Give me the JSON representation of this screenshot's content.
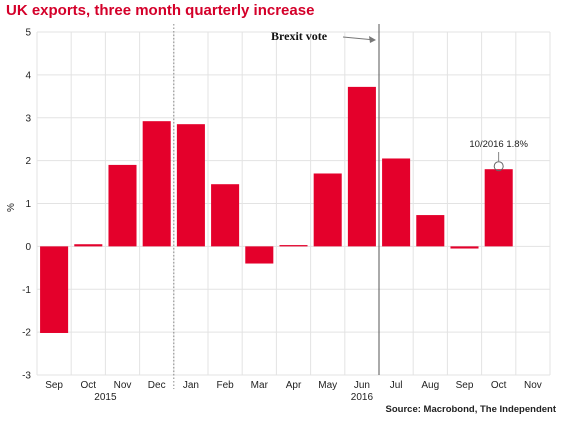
{
  "title": "UK exports, three month quarterly increase",
  "source": "Source: Macrobond, The Independent",
  "colors": {
    "bar": "#e4002b",
    "title": "#d4002a",
    "grid": "#e3e3e3"
  },
  "chart_data": {
    "type": "bar",
    "title": "UK exports, three month quarterly increase",
    "xlabel": "",
    "ylabel": "%",
    "ylim": [
      -3,
      5
    ],
    "yticks": [
      5,
      4,
      3,
      2,
      1,
      0,
      -1,
      -2,
      -3
    ],
    "grid": true,
    "categories": [
      "Sep",
      "Oct",
      "Nov",
      "Dec",
      "Jan",
      "Feb",
      "Mar",
      "Apr",
      "May",
      "Jun",
      "Jul",
      "Aug",
      "Sep",
      "Oct",
      "Nov"
    ],
    "values": [
      -2.02,
      0.05,
      1.9,
      2.92,
      2.85,
      1.45,
      -0.4,
      0.03,
      1.7,
      3.72,
      2.05,
      0.73,
      -0.05,
      1.8,
      null
    ],
    "year_labels": [
      "2015",
      "2016"
    ],
    "annotations": {
      "event_label": "Brexit vote",
      "point_label": "10/2016 1.8%"
    }
  }
}
